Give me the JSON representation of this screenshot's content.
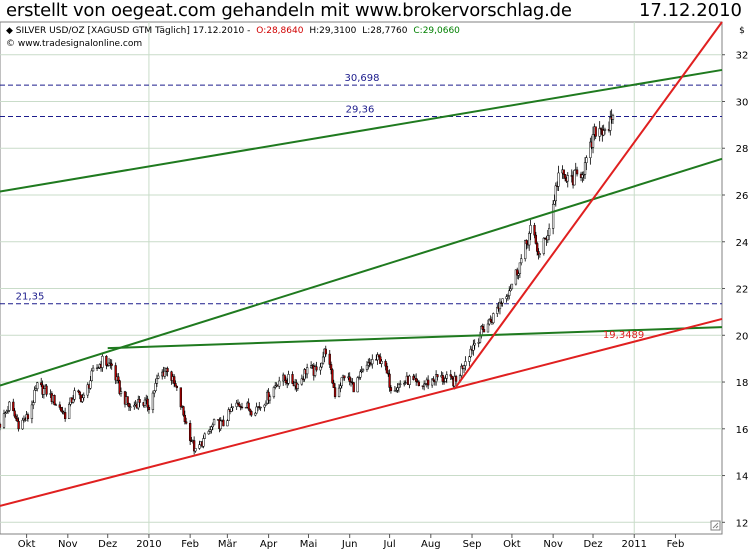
{
  "header": {
    "title": "erstellt von oegeat.com gehandeln mit www.brokervorschlag.de",
    "date": "17.12.2010"
  },
  "chart_data": {
    "type": "candlestick",
    "instrument_line": {
      "name": "SILVER USD/OZ [XAGUSD GTM  Täglich] 17.12.2010 -",
      "open": "O:28,8640",
      "high": "H:29,3100",
      "low": "L:28,7760",
      "close": "C:29,0660"
    },
    "source": "www.tradesignalonline.com",
    "currency_symbol": "$",
    "ylim": [
      11.5,
      33.4
    ],
    "y_ticks": [
      "12",
      "14",
      "16",
      "18",
      "20",
      "22",
      "24",
      "26",
      "28",
      "30",
      "32"
    ],
    "y_tick_values": [
      12,
      14,
      16,
      18,
      20,
      22,
      24,
      26,
      28,
      30,
      32
    ],
    "xlim": [
      "2009-09-11",
      "2011-03-08"
    ],
    "x_ticks": [
      {
        "label": "Okt",
        "date": "2009-10-01"
      },
      {
        "label": "Nov",
        "date": "2009-11-01"
      },
      {
        "label": "Dez",
        "date": "2009-12-01"
      },
      {
        "label": "2010",
        "date": "2010-01-01"
      },
      {
        "label": "Feb",
        "date": "2010-02-01"
      },
      {
        "label": "Mär",
        "date": "2010-03-01"
      },
      {
        "label": "Apr",
        "date": "2010-04-01"
      },
      {
        "label": "Mai",
        "date": "2010-05-01"
      },
      {
        "label": "Jun",
        "date": "2010-06-01"
      },
      {
        "label": "Jul",
        "date": "2010-07-01"
      },
      {
        "label": "Aug",
        "date": "2010-08-01"
      },
      {
        "label": "Sep",
        "date": "2010-09-01"
      },
      {
        "label": "Okt",
        "date": "2010-10-01"
      },
      {
        "label": "Nov",
        "date": "2010-11-01"
      },
      {
        "label": "Dez",
        "date": "2010-12-01"
      },
      {
        "label": "2011",
        "date": "2011-01-01"
      },
      {
        "label": "Feb",
        "date": "2011-02-01"
      }
    ],
    "vertical_grid_dates": [
      "2010-01-01",
      "2011-01-01"
    ],
    "horizontal_levels": [
      {
        "label": "30,698",
        "value": 30.698
      },
      {
        "label": "29,36",
        "value": 29.36
      },
      {
        "label": "21,35",
        "value": 21.35
      }
    ],
    "trendlines": [
      {
        "color": "#1f7a1f",
        "start": {
          "date": "2009-09-11",
          "value": 26.15
        },
        "end": {
          "date": "2011-03-08",
          "value": 31.35
        }
      },
      {
        "color": "#1f7a1f",
        "start": {
          "date": "2009-09-11",
          "value": 17.85
        },
        "end": {
          "date": "2011-03-08",
          "value": 27.55
        }
      },
      {
        "color": "#1f7a1f",
        "start": {
          "date": "2009-12-01",
          "value": 19.45
        },
        "end": {
          "date": "2011-03-08",
          "value": 20.35
        }
      },
      {
        "color": "#e02020",
        "start": {
          "date": "2009-09-11",
          "value": 12.7
        },
        "end": {
          "date": "2011-03-08",
          "value": 20.7
        }
      },
      {
        "color": "#e02020",
        "start": {
          "date": "2010-08-20",
          "value": 17.8
        },
        "end": {
          "date": "2011-03-08",
          "value": 33.4
        }
      }
    ],
    "trendline_label": {
      "text": "19,3489",
      "date": "2010-12-24",
      "value": 19.55
    },
    "series": [
      {
        "date": "2009-09-11",
        "close": 16.2
      },
      {
        "date": "2009-09-18",
        "close": 17.0
      },
      {
        "date": "2009-09-25",
        "close": 16.2
      },
      {
        "date": "2009-10-02",
        "close": 16.5
      },
      {
        "date": "2009-10-09",
        "close": 17.8
      },
      {
        "date": "2009-10-16",
        "close": 17.6
      },
      {
        "date": "2009-10-23",
        "close": 17.1
      },
      {
        "date": "2009-10-30",
        "close": 16.6
      },
      {
        "date": "2009-11-06",
        "close": 17.5
      },
      {
        "date": "2009-11-13",
        "close": 17.3
      },
      {
        "date": "2009-11-20",
        "close": 18.4
      },
      {
        "date": "2009-11-27",
        "close": 18.9
      },
      {
        "date": "2009-12-04",
        "close": 18.7
      },
      {
        "date": "2009-12-11",
        "close": 17.5
      },
      {
        "date": "2009-12-18",
        "close": 16.9
      },
      {
        "date": "2009-12-25",
        "close": 17.2
      },
      {
        "date": "2010-01-01",
        "close": 17.0
      },
      {
        "date": "2010-01-08",
        "close": 18.2
      },
      {
        "date": "2010-01-15",
        "close": 18.6
      },
      {
        "date": "2010-01-22",
        "close": 17.6
      },
      {
        "date": "2010-01-29",
        "close": 16.2
      },
      {
        "date": "2010-02-05",
        "close": 15.0
      },
      {
        "date": "2010-02-12",
        "close": 15.6
      },
      {
        "date": "2010-02-19",
        "close": 16.2
      },
      {
        "date": "2010-02-26",
        "close": 16.2
      },
      {
        "date": "2010-03-05",
        "close": 16.9
      },
      {
        "date": "2010-03-12",
        "close": 17.1
      },
      {
        "date": "2010-03-19",
        "close": 16.8
      },
      {
        "date": "2010-03-26",
        "close": 17.0
      },
      {
        "date": "2010-04-02",
        "close": 17.5
      },
      {
        "date": "2010-04-09",
        "close": 18.1
      },
      {
        "date": "2010-04-16",
        "close": 18.1
      },
      {
        "date": "2010-04-23",
        "close": 17.9
      },
      {
        "date": "2010-04-30",
        "close": 18.6
      },
      {
        "date": "2010-05-07",
        "close": 18.4
      },
      {
        "date": "2010-05-14",
        "close": 19.4
      },
      {
        "date": "2010-05-21",
        "close": 17.5
      },
      {
        "date": "2010-05-28",
        "close": 18.3
      },
      {
        "date": "2010-06-04",
        "close": 17.8
      },
      {
        "date": "2010-06-11",
        "close": 18.4
      },
      {
        "date": "2010-06-18",
        "close": 18.9
      },
      {
        "date": "2010-06-25",
        "close": 19.0
      },
      {
        "date": "2010-07-02",
        "close": 17.8
      },
      {
        "date": "2010-07-09",
        "close": 17.9
      },
      {
        "date": "2010-07-16",
        "close": 18.1
      },
      {
        "date": "2010-07-23",
        "close": 17.8
      },
      {
        "date": "2010-07-30",
        "close": 18.0
      },
      {
        "date": "2010-08-06",
        "close": 18.2
      },
      {
        "date": "2010-08-13",
        "close": 18.1
      },
      {
        "date": "2010-08-20",
        "close": 18.0
      },
      {
        "date": "2010-08-27",
        "close": 19.0
      },
      {
        "date": "2010-09-03",
        "close": 19.7
      },
      {
        "date": "2010-09-10",
        "close": 20.3
      },
      {
        "date": "2010-09-17",
        "close": 20.8
      },
      {
        "date": "2010-09-24",
        "close": 21.6
      },
      {
        "date": "2010-10-01",
        "close": 22.2
      },
      {
        "date": "2010-10-08",
        "close": 23.2
      },
      {
        "date": "2010-10-15",
        "close": 24.5
      },
      {
        "date": "2010-10-22",
        "close": 23.4
      },
      {
        "date": "2010-10-29",
        "close": 24.6
      },
      {
        "date": "2010-11-05",
        "close": 26.9
      },
      {
        "date": "2010-11-12",
        "close": 26.6
      },
      {
        "date": "2010-11-19",
        "close": 26.8
      },
      {
        "date": "2010-11-26",
        "close": 27.3
      },
      {
        "date": "2010-12-03",
        "close": 28.8
      },
      {
        "date": "2010-12-10",
        "close": 28.9
      },
      {
        "date": "2010-12-17",
        "close": 29.07
      }
    ]
  }
}
